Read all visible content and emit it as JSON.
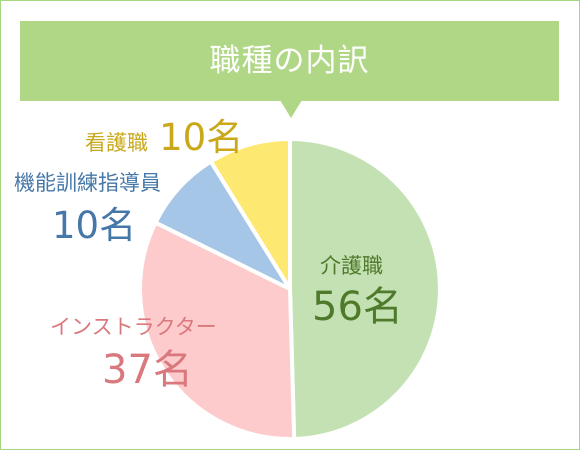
{
  "chart_data": {
    "type": "pie",
    "title": "職種の内訳",
    "slices": [
      {
        "label": "介護職",
        "value": 56,
        "unit": "名",
        "color": "#c4e1b4",
        "text_color": "#4f7a2c"
      },
      {
        "label": "インストラクター",
        "value": 37,
        "unit": "名",
        "color": "#fecbcd",
        "text_color": "#d9787d"
      },
      {
        "label": "機能訓練指導員",
        "value": 10,
        "unit": "名",
        "color": "#a6c6e7",
        "text_color": "#4577a8"
      },
      {
        "label": "看護職",
        "value": 10,
        "unit": "名",
        "color": "#fde972",
        "text_color": "#c9a91b"
      }
    ],
    "start_angle_deg": 0,
    "direction": "clockwise"
  }
}
